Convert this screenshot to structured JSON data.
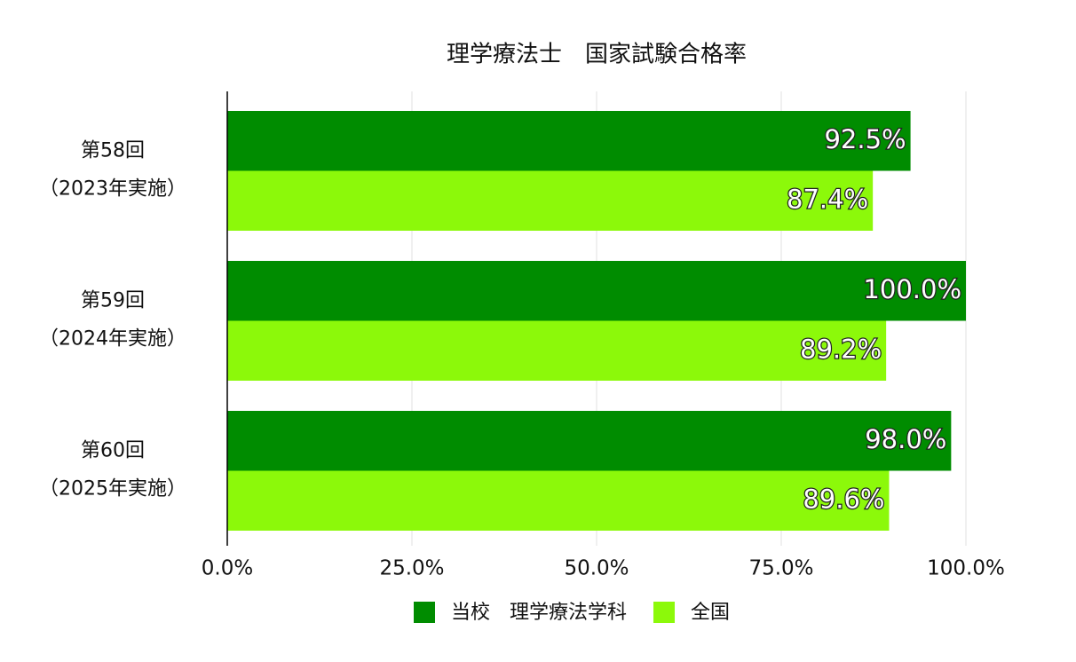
{
  "chart_data": {
    "type": "hbar",
    "title": "理学療法士　国家試験合格率",
    "categories": [
      [
        "第58回",
        "（2023年実施）"
      ],
      [
        "第59回",
        "（2024年実施）"
      ],
      [
        "第60回",
        "（2025年実施）"
      ]
    ],
    "series": [
      {
        "name": "当校　理学療法学科",
        "color": "#008c00",
        "values": [
          92.5,
          100.0,
          98.0
        ],
        "value_labels": [
          "92.5%",
          "100.0%",
          "98.0%"
        ]
      },
      {
        "name": "全国",
        "color": "#8cf90a",
        "values": [
          87.4,
          89.2,
          89.6
        ],
        "value_labels": [
          "87.4%",
          "89.2%",
          "89.6%"
        ]
      }
    ],
    "xlim": [
      0,
      100
    ],
    "xticks": [
      {
        "value": 0,
        "label": "0.0%"
      },
      {
        "value": 25,
        "label": "25.0%"
      },
      {
        "value": 50,
        "label": "50.0%"
      },
      {
        "value": 75,
        "label": "75.0%"
      },
      {
        "value": 100,
        "label": "100.0%"
      }
    ],
    "grid": true
  }
}
